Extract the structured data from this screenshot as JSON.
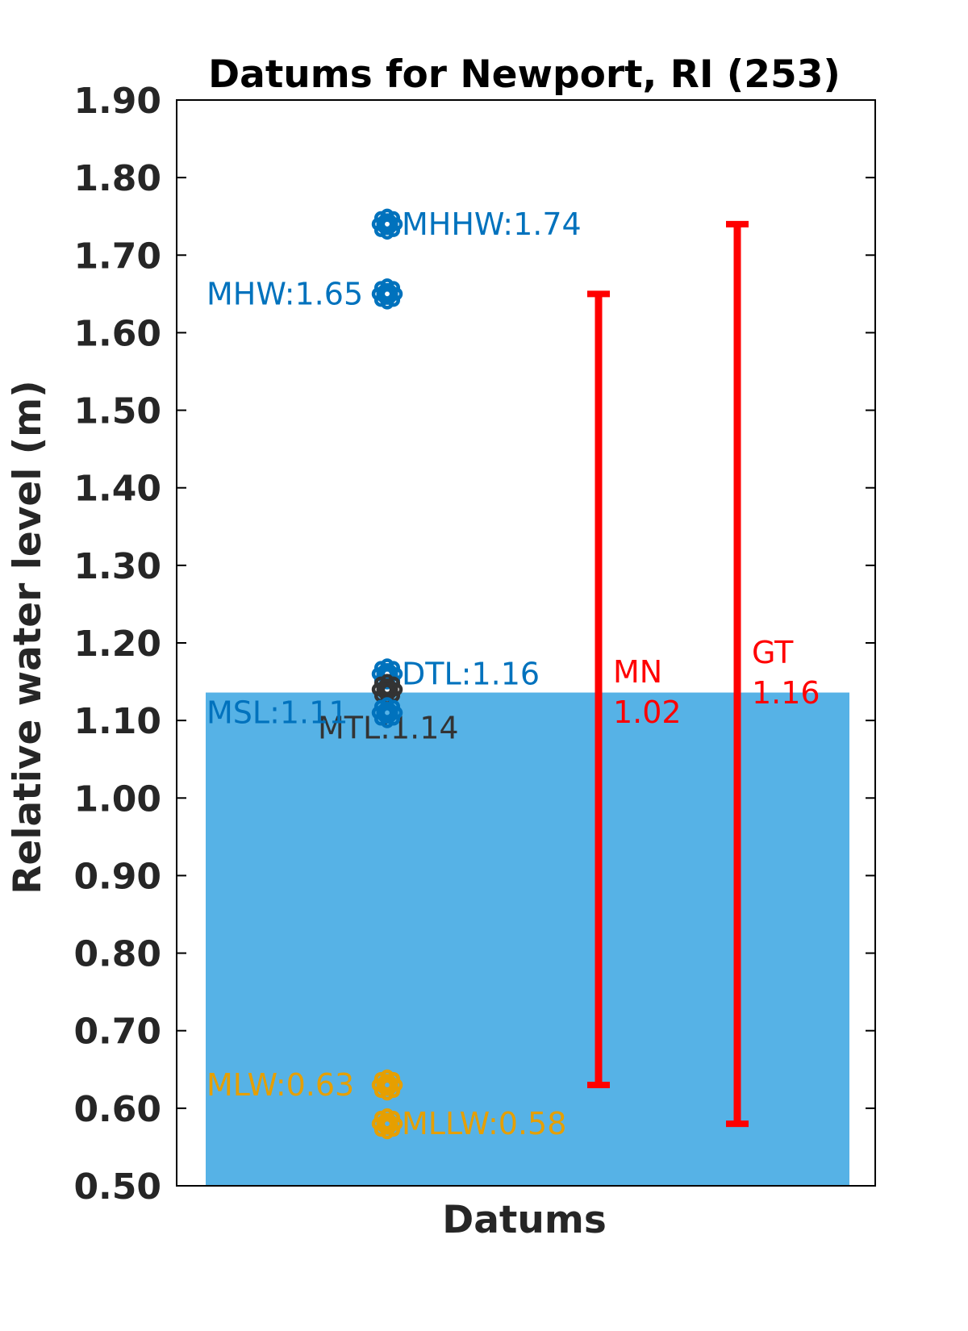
{
  "chart_data": {
    "type": "bar",
    "title": "Datums for Newport, RI (253)",
    "xlabel": "Datums",
    "ylabel": "Relative water level (m)",
    "ylim": [
      0.5,
      1.9
    ],
    "yticks": [
      "0.50",
      "0.60",
      "0.70",
      "0.80",
      "0.90",
      "1.00",
      "1.10",
      "1.20",
      "1.30",
      "1.40",
      "1.50",
      "1.60",
      "1.70",
      "1.80",
      "1.90"
    ],
    "grid": false,
    "bar": {
      "value": 1.136,
      "color": "#56B2E6"
    },
    "datums": [
      {
        "name": "MHHW",
        "value": 1.74,
        "label": "MHHW:1.74",
        "color": "#0072BD",
        "side": "right"
      },
      {
        "name": "MHW",
        "value": 1.65,
        "label": "MHW:1.65",
        "color": "#0072BD",
        "side": "left"
      },
      {
        "name": "DTL",
        "value": 1.16,
        "label": "DTL:1.16",
        "color": "#0072BD",
        "side": "right"
      },
      {
        "name": "MTL",
        "value": 1.14,
        "label": "MTL:1.14",
        "color": "#333333",
        "side": "below"
      },
      {
        "name": "MSL",
        "value": 1.11,
        "label": "MSL:1.11",
        "color": "#0072BD",
        "side": "left"
      },
      {
        "name": "MLW",
        "value": 0.63,
        "label": "MLW:0.63",
        "color": "#E69F00",
        "side": "left"
      },
      {
        "name": "MLLW",
        "value": 0.58,
        "label": "MLLW:0.58",
        "color": "#E69F00",
        "side": "right"
      }
    ],
    "ranges": [
      {
        "name": "MN",
        "label_line1": "MN",
        "label_line2": "1.02",
        "low": 0.63,
        "high": 1.65,
        "color": "#FF0000"
      },
      {
        "name": "GT",
        "label_line1": "GT",
        "label_line2": "1.16",
        "low": 0.58,
        "high": 1.74,
        "color": "#FF0000"
      }
    ]
  }
}
